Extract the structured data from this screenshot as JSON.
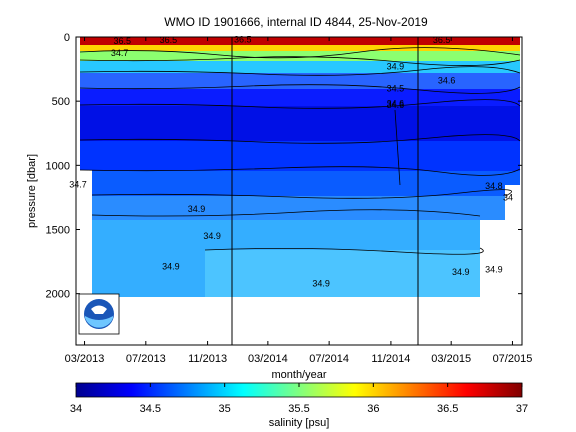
{
  "chart_data": {
    "type": "heatmap",
    "title": "WMO ID 1901666, internal ID 4844, 25-Nov-2019",
    "xlabel": "month/year",
    "ylabel": "pressure [dbar]",
    "x_ticks": [
      "03/2013",
      "07/2013",
      "11/2013",
      "03/2014",
      "07/2014",
      "11/2014",
      "03/2015",
      "07/2015"
    ],
    "y_ticks": [
      "0",
      "500",
      "1000",
      "1500",
      "2000"
    ],
    "ylim": [
      2400,
      0
    ],
    "y_reversed": true,
    "colorbar": {
      "label": "salinity [psu]",
      "ticks": [
        "34",
        "34.5",
        "35",
        "35.5",
        "36",
        "36.5",
        "37"
      ],
      "range": [
        34,
        37
      ],
      "colormap": "jet"
    },
    "year_boundaries": [
      "01/2014",
      "01/2015"
    ],
    "contour_labels": [
      {
        "text": "36.5",
        "date": "2013-05-15",
        "p": 30
      },
      {
        "text": "36.5",
        "date": "2013-08-15",
        "p": 25
      },
      {
        "text": "36.5",
        "date": "2014-01-10",
        "p": 20
      },
      {
        "text": "36.5",
        "date": "2015-02-10",
        "p": 25
      },
      {
        "text": "34.7",
        "date": "2013-05-10",
        "p": 125
      },
      {
        "text": "34.9",
        "date": "2014-11-10",
        "p": 230
      },
      {
        "text": "34.6",
        "date": "2015-02-20",
        "p": 340
      },
      {
        "text": "34.5",
        "date": "2014-11-10",
        "p": 400
      },
      {
        "text": "34.6",
        "date": "2014-11-10",
        "p": 520
      },
      {
        "text": "34.6",
        "date": "2014-11-10",
        "p": 530
      },
      {
        "text": "34.7",
        "date": "2013-02-15",
        "p": 1150
      },
      {
        "text": "34.8",
        "date": "2015-05-25",
        "p": 1160
      },
      {
        "text": "34",
        "date": "2015-07-10",
        "p": 1250
      },
      {
        "text": "34.9",
        "date": "2013-10-10",
        "p": 1340
      },
      {
        "text": "34.9",
        "date": "2013-11-10",
        "p": 1550
      },
      {
        "text": "34.9",
        "date": "2013-08-20",
        "p": 1790
      },
      {
        "text": "34.9",
        "date": "2014-06-15",
        "p": 1920
      },
      {
        "text": "34.9",
        "date": "2015-03-20",
        "p": 1830
      },
      {
        "text": "34.9",
        "date": "2015-05-25",
        "p": 1810
      }
    ],
    "logo": "NOAA"
  }
}
